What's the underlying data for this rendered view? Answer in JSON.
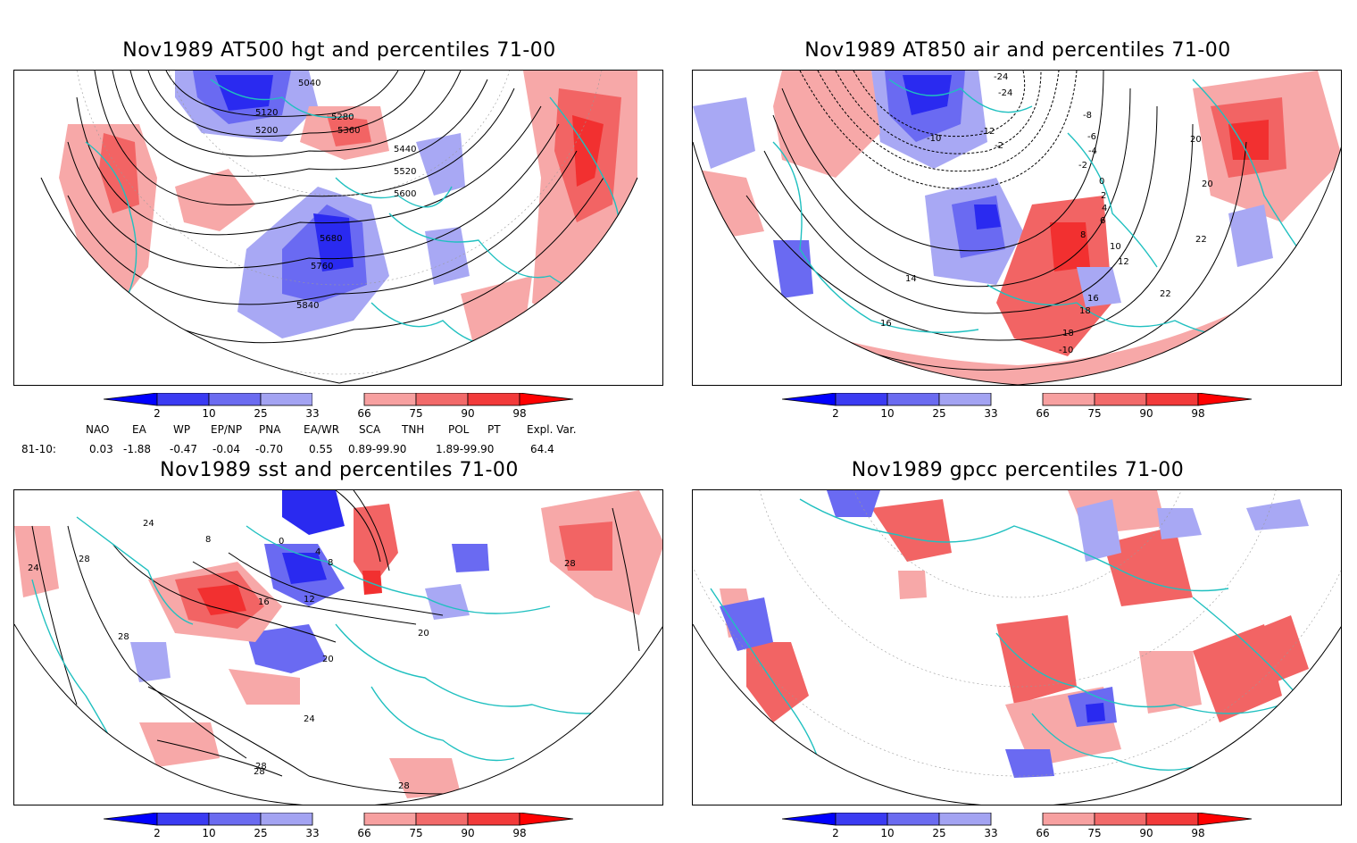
{
  "panels": [
    {
      "id": "p1",
      "title": "Nov1989 AT500 hgt and percentiles 71-00",
      "contour_labels": [
        "5040",
        "5120",
        "5200",
        "5280",
        "5360",
        "5440",
        "5520",
        "5600",
        "5680",
        "5760",
        "5840"
      ]
    },
    {
      "id": "p2",
      "title": "Nov1989 AT850 air and percentiles 71-00",
      "contour_labels": [
        "-24",
        "-24",
        "-10",
        "-8",
        "-6",
        "-4",
        "-2",
        "0",
        "2",
        "4",
        "6",
        "8",
        "10",
        "12",
        "14",
        "16",
        "18",
        "20",
        "22",
        "16",
        "18",
        "20",
        "22",
        "-12",
        "-2",
        "-10"
      ]
    },
    {
      "id": "p3",
      "title": "Nov1989 sst and percentiles 71-00",
      "contour_labels": [
        "24",
        "28",
        "24",
        "28",
        "8",
        "0",
        "4",
        "8",
        "12",
        "16",
        "20",
        "20",
        "24",
        "28",
        "28",
        "28",
        "28"
      ]
    },
    {
      "id": "p4",
      "title": "Nov1989 gpcc percentiles 71-00",
      "contour_labels": []
    }
  ],
  "colorbar": {
    "labels": [
      "2",
      "10",
      "25",
      "33",
      "66",
      "75",
      "90",
      "98"
    ],
    "colors": [
      "#0000ff",
      "#3b3bf2",
      "#6b6bf0",
      "#a3a3f2",
      "#ffffff",
      "#f7a0a0",
      "#f26a6a",
      "#f23a3a",
      "#ff0000"
    ]
  },
  "indices": {
    "headers": [
      "NAO",
      "EA",
      "WP",
      "EP/NP",
      "PNA",
      "EA/WR",
      "SCA",
      "TNH",
      "POL",
      "PT",
      "Expl. Var."
    ],
    "row_label": "81-10:",
    "values": [
      "0.03",
      "-1.88",
      "-0.47",
      "-0.04",
      "-0.70",
      "0.55",
      "0.89-99.90",
      "",
      "1.89-99.90",
      "",
      "64.4"
    ]
  },
  "colors": {
    "coast": "#20c0c0",
    "blue_strong": "#2a2af0",
    "blue_mid": "#6a6af2",
    "blue_light": "#a8a8f4",
    "red_strong": "#f23030",
    "red_mid": "#f26464",
    "red_light": "#f7a8a8"
  }
}
